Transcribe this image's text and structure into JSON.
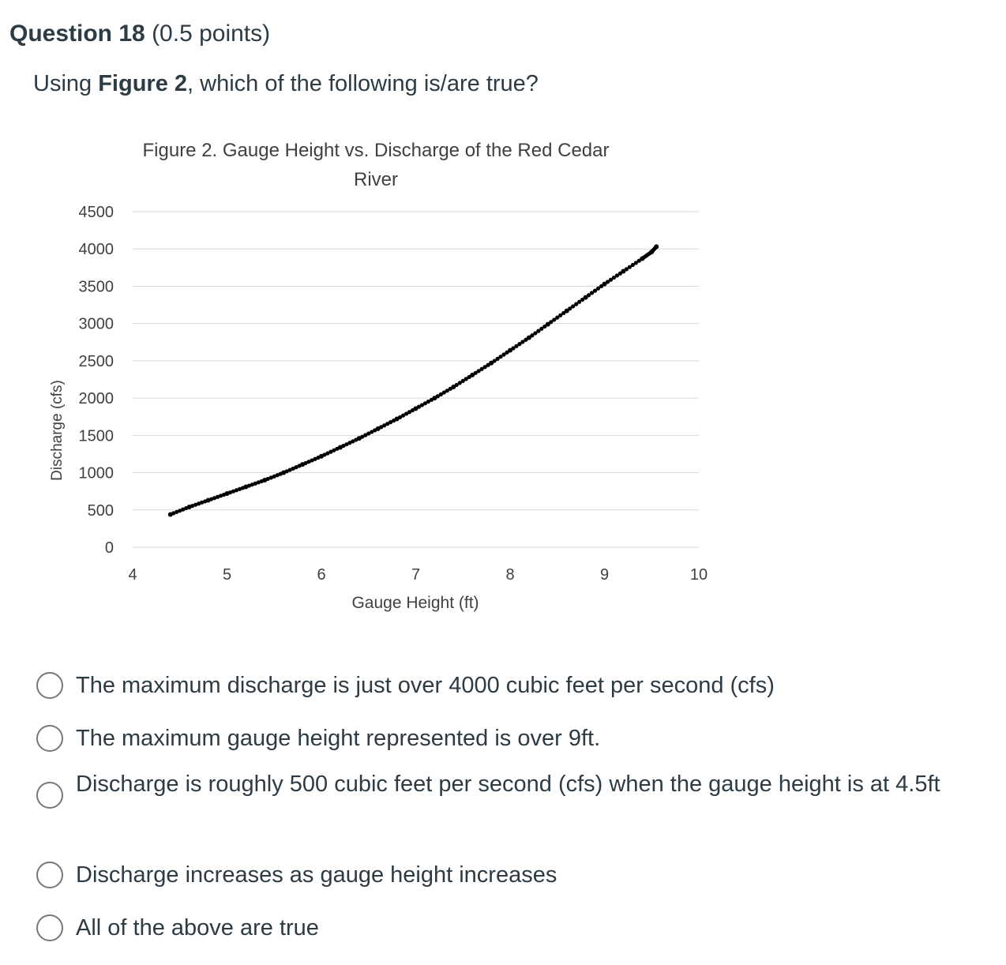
{
  "question": {
    "number_label": "Question 18",
    "points": "(0.5 points)",
    "prompt_prefix": "Using ",
    "prompt_bold": "Figure 2",
    "prompt_suffix": ", which of the following is/are true?"
  },
  "chart_data": {
    "type": "scatter",
    "title": "Figure 2. Gauge Height vs. Discharge of the Red Cedar",
    "title_line2": "River",
    "xlabel": "Gauge Height (ft)",
    "ylabel": "Discharge (cfs)",
    "xlim": [
      4,
      10
    ],
    "ylim": [
      0,
      4500
    ],
    "x_ticks": [
      "4",
      "5",
      "6",
      "7",
      "8",
      "9",
      "10"
    ],
    "y_ticks": [
      "4500",
      "4000",
      "3500",
      "3000",
      "2500",
      "2000",
      "1500",
      "1000",
      "500",
      "0"
    ],
    "grid": true,
    "marker_color": "#000000",
    "gridline_color": "#d9d9d9",
    "points": [
      [
        4.4,
        440
      ],
      [
        4.6,
        540
      ],
      [
        4.8,
        630
      ],
      [
        5.0,
        720
      ],
      [
        5.2,
        810
      ],
      [
        5.4,
        900
      ],
      [
        5.6,
        1000
      ],
      [
        5.8,
        1110
      ],
      [
        6.0,
        1220
      ],
      [
        6.2,
        1340
      ],
      [
        6.4,
        1460
      ],
      [
        6.6,
        1590
      ],
      [
        6.8,
        1720
      ],
      [
        7.0,
        1860
      ],
      [
        7.2,
        2000
      ],
      [
        7.4,
        2150
      ],
      [
        7.6,
        2310
      ],
      [
        7.8,
        2470
      ],
      [
        8.0,
        2640
      ],
      [
        8.2,
        2810
      ],
      [
        8.4,
        2990
      ],
      [
        8.6,
        3170
      ],
      [
        8.8,
        3350
      ],
      [
        9.0,
        3530
      ],
      [
        9.2,
        3700
      ],
      [
        9.4,
        3870
      ],
      [
        9.5,
        3960
      ],
      [
        9.55,
        4030
      ]
    ]
  },
  "options": [
    {
      "label": "The maximum discharge is just over 4000 cubic feet per second (cfs)"
    },
    {
      "label": "The maximum gauge height represented is over 9ft."
    },
    {
      "label": "Discharge is roughly 500 cubic feet per second (cfs) when the gauge height is at 4.5ft"
    },
    {
      "label": "Discharge increases as gauge height increases"
    },
    {
      "label": "All of the above are true"
    }
  ]
}
